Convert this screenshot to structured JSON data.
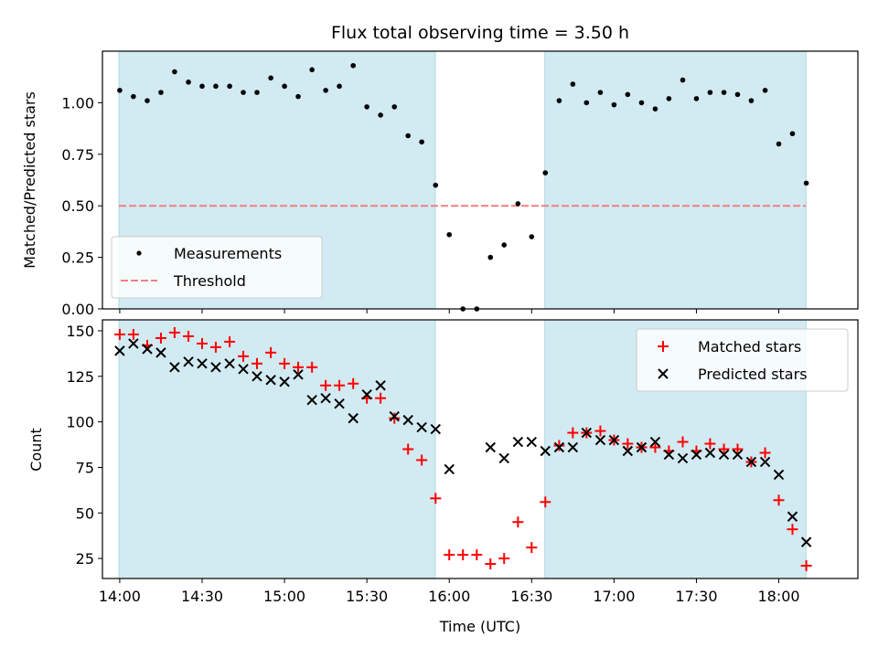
{
  "chart_data": {
    "type": "scatter",
    "title": "Flux total observing time = 3.50 h",
    "xlabel": "Time (UTC)",
    "x_ticks": [
      "14:00",
      "14:30",
      "15:00",
      "15:30",
      "16:00",
      "16:30",
      "17:00",
      "17:30",
      "18:00"
    ],
    "x_range_hours": [
      13.895,
      18.48
    ],
    "shaded_intervals_hours": [
      [
        13.995,
        15.915
      ],
      [
        16.58,
        18.165
      ]
    ],
    "shade_color": "#add8e6",
    "top_panel": {
      "ylabel": "Matched/Predicted stars",
      "ylim": [
        0,
        1.25
      ],
      "y_ticks": [
        "0.00",
        "0.25",
        "0.50",
        "0.75",
        "1.00"
      ],
      "threshold": 0.5,
      "legend": [
        "Measurements",
        "Threshold"
      ],
      "legend_position": "lower-left",
      "threshold_color": "#f08080",
      "points": [
        [
          14.0,
          1.06
        ],
        [
          14.083,
          1.03
        ],
        [
          14.167,
          1.01
        ],
        [
          14.25,
          1.05
        ],
        [
          14.333,
          1.15
        ],
        [
          14.417,
          1.1
        ],
        [
          14.5,
          1.08
        ],
        [
          14.583,
          1.08
        ],
        [
          14.667,
          1.08
        ],
        [
          14.75,
          1.05
        ],
        [
          14.833,
          1.05
        ],
        [
          14.917,
          1.12
        ],
        [
          15.0,
          1.08
        ],
        [
          15.083,
          1.03
        ],
        [
          15.167,
          1.16
        ],
        [
          15.25,
          1.06
        ],
        [
          15.333,
          1.08
        ],
        [
          15.417,
          1.18
        ],
        [
          15.5,
          0.98
        ],
        [
          15.583,
          0.94
        ],
        [
          15.667,
          0.98
        ],
        [
          15.75,
          0.84
        ],
        [
          15.833,
          0.81
        ],
        [
          15.917,
          0.6
        ],
        [
          16.0,
          0.36
        ],
        [
          16.083,
          0.0
        ],
        [
          16.167,
          0.0
        ],
        [
          16.25,
          0.25
        ],
        [
          16.333,
          0.31
        ],
        [
          16.417,
          0.51
        ],
        [
          16.5,
          0.35
        ],
        [
          16.583,
          0.66
        ],
        [
          16.667,
          1.01
        ],
        [
          16.75,
          1.09
        ],
        [
          16.833,
          1.0
        ],
        [
          16.917,
          1.05
        ],
        [
          17.0,
          0.99
        ],
        [
          17.083,
          1.04
        ],
        [
          17.167,
          1.0
        ],
        [
          17.25,
          0.97
        ],
        [
          17.333,
          1.02
        ],
        [
          17.417,
          1.11
        ],
        [
          17.5,
          1.02
        ],
        [
          17.583,
          1.05
        ],
        [
          17.667,
          1.05
        ],
        [
          17.75,
          1.04
        ],
        [
          17.833,
          1.01
        ],
        [
          17.917,
          1.06
        ],
        [
          18.0,
          0.8
        ],
        [
          18.083,
          0.85
        ],
        [
          18.167,
          0.61
        ]
      ]
    },
    "bottom_panel": {
      "ylabel": "Count",
      "ylim": [
        14,
        156
      ],
      "y_ticks": [
        "25",
        "50",
        "75",
        "100",
        "125",
        "150"
      ],
      "legend": [
        "Matched stars",
        "Predicted stars"
      ],
      "legend_position": "top-right",
      "matched_color": "#ff0000",
      "predicted_color": "#000000",
      "x": [
        14.0,
        14.083,
        14.167,
        14.25,
        14.333,
        14.417,
        14.5,
        14.583,
        14.667,
        14.75,
        14.833,
        14.917,
        15.0,
        15.083,
        15.167,
        15.25,
        15.333,
        15.417,
        15.5,
        15.583,
        15.667,
        15.75,
        15.833,
        15.917,
        16.0,
        16.083,
        16.167,
        16.25,
        16.333,
        16.417,
        16.5,
        16.583,
        16.667,
        16.75,
        16.833,
        16.917,
        17.0,
        17.083,
        17.167,
        17.25,
        17.333,
        17.417,
        17.5,
        17.583,
        17.667,
        17.75,
        17.833,
        17.917,
        18.0,
        18.083,
        18.167
      ],
      "matched": [
        148,
        148,
        142,
        146,
        149,
        147,
        143,
        141,
        144,
        136,
        132,
        138,
        132,
        130,
        130,
        120,
        120,
        121,
        113,
        113,
        102,
        85,
        79,
        58,
        27,
        27,
        27,
        22,
        25,
        45,
        31,
        56,
        87,
        94,
        94,
        95,
        90,
        88,
        86,
        86,
        84,
        89,
        84,
        88,
        85,
        85,
        78,
        83,
        57,
        41,
        21
      ],
      "predicted": [
        139,
        143,
        140,
        138,
        130,
        133,
        132,
        130,
        132,
        129,
        125,
        123,
        122,
        126,
        112,
        113,
        110,
        102,
        115,
        120,
        103,
        101,
        97,
        96,
        74,
        null,
        null,
        86,
        80,
        89,
        89,
        84,
        86,
        86,
        94,
        90,
        90,
        84,
        86,
        89,
        82,
        80,
        82,
        83,
        82,
        82,
        78,
        78,
        71,
        48,
        34
      ]
    }
  }
}
